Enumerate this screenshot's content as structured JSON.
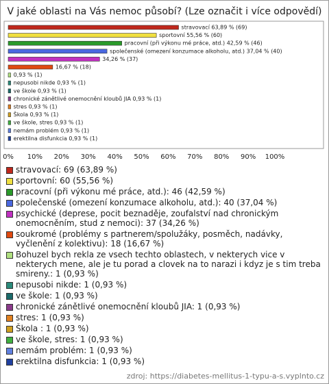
{
  "chart_data": {
    "type": "bar",
    "orientation": "horizontal",
    "title": "V jaké oblasti na Vás nemoc působí? (Lze označit i více odpovědí)",
    "categories": [
      "stravovací",
      "sportovní",
      "pracovní (při výkonu mé práce, atd.)",
      "společenské (omezení konzumace alkoholu, atd.)",
      "psychické",
      "soukromé",
      "Bohuzel",
      "nepusobi nikde",
      "ve škole",
      "chronické zánětlivé onemocnění kloubů JIA",
      "stres",
      "Škola",
      "ve škole, stres",
      "nemám problém",
      "erektilna disfunkcia"
    ],
    "values": [
      63.89,
      55.56,
      42.59,
      37.04,
      34.26,
      16.67,
      0.93,
      0.93,
      0.93,
      0.93,
      0.93,
      0.93,
      0.93,
      0.93,
      0.93
    ],
    "value_labels": [
      "stravovací 63,89 % (69)",
      "sportovní 55,56 % (60)",
      "pracovní (při výkonu mé práce, atd.) 42,59 % (46)",
      "společenské (omezení konzumace alkoholu, atd.) 37,04 % (40)",
      "34,26 % (37)",
      "16,67 % (18)",
      "0,93 % (1)",
      "nepusobi nikde 0,93 % (1)",
      "ve škole 0,93 % (1)",
      "chronické zánětlivé onemocnění kloubů JIA 0,93 % (1)",
      "stres 0,93 % (1)",
      "Škola  0,93 % (1)",
      "ve škole, stres 0,93 % (1)",
      "nemám problém 0,93 % (1)",
      "erektilna disfunkcia 0,93 % (1)"
    ],
    "colors": [
      "#c0281c",
      "#f0e040",
      "#2a9a2a",
      "#4a68e0",
      "#c030c0",
      "#e04a10",
      "#b0e080",
      "#2a8a7a",
      "#1a6a6a",
      "#8a3a8a",
      "#e08020",
      "#d0a020",
      "#40b040",
      "#6080e0",
      "#2040a0"
    ],
    "legend_labels": [
      "stravovací: 69 (63,89 %)",
      "sportovní: 60 (55,56 %)",
      "pracovní (při výkonu mé práce, atd.): 46 (42,59 %)",
      "společenské (omezení konzumace alkoholu, atd.): 40 (37,04 %)",
      "psychické (deprese, pocit beznaděje, zoufalství nad chronickým onemocněním, stud z nemoci): 37 (34,26 %)",
      "soukromé (problémy s partnerem/spolužáky, posměch, nadávky, vyčlenění z kolektivu): 18 (16,67 %)",
      "Bohuzel bych rekla ze vsech techto oblastech, v nekterych vice v nekterych mene, ale je tu porad a clovek na to narazi i kdyz je s tim treba smireny.: 1 (0,93 %)",
      "nepusobi nikde: 1 (0,93 %)",
      "ve škole: 1 (0,93 %)",
      "chronické zánětlivé onemocnění kloubů JIA: 1 (0,93 %)",
      "stres: 1 (0,93 %)",
      "Škola : 1 (0,93 %)",
      "ve škole, stres: 1 (0,93 %)",
      "nemám problém: 1 (0,93 %)",
      "erektilna disfunkcia: 1 (0,93 %)"
    ],
    "xlim": [
      0,
      100
    ],
    "xticks": [
      {
        "value": 0,
        "label": "0%"
      },
      {
        "value": 10,
        "label": "10%"
      },
      {
        "value": 20,
        "label": "20%"
      },
      {
        "value": 30,
        "label": "30%"
      },
      {
        "value": 40,
        "label": "40%"
      },
      {
        "value": 50,
        "label": "50%"
      },
      {
        "value": 60,
        "label": "60%"
      },
      {
        "value": 70,
        "label": "70%"
      },
      {
        "value": 80,
        "label": "80%"
      },
      {
        "value": 90,
        "label": "90%"
      },
      {
        "value": 100,
        "label": "100%"
      }
    ],
    "grid": false,
    "source": "zdroj: https://diabetes-mellitus-1-typu-a-s.vyplnto.cz"
  }
}
